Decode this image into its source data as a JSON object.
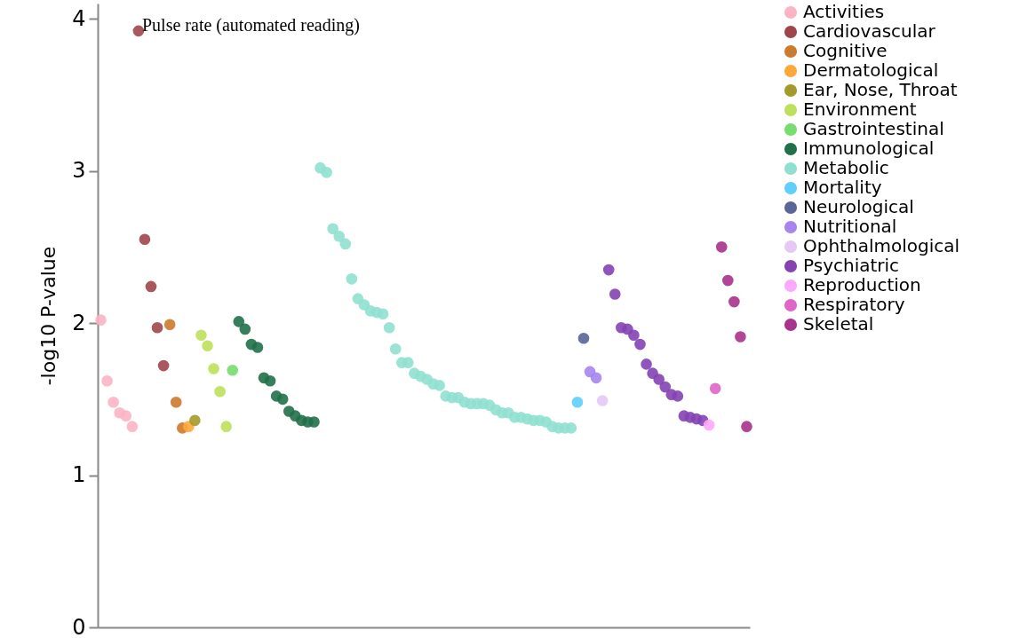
{
  "chart_data": {
    "type": "scatter",
    "ylabel": "-log10 P-value",
    "ylim": [
      0,
      4.1
    ],
    "yticks": [
      0,
      1,
      2,
      3,
      4
    ],
    "tick_labels": "y",
    "legend": "top right",
    "marker": "circle",
    "annotations": [
      "Pulse rate (automated reading)"
    ],
    "categories": [
      null,
      null,
      null,
      null,
      null,
      null,
      null,
      null,
      null,
      null,
      null,
      null,
      null,
      null,
      null,
      null,
      null,
      null,
      null,
      null,
      null,
      null,
      null,
      null,
      null,
      null,
      null,
      null,
      null,
      null,
      null,
      null,
      null,
      null,
      null,
      null,
      null,
      null,
      null,
      null,
      null,
      null,
      null,
      null,
      null,
      null,
      null,
      null,
      null,
      null,
      null,
      null,
      null,
      null,
      null,
      null,
      null,
      null,
      null,
      null,
      null,
      null,
      null,
      null,
      null,
      null,
      null,
      null,
      null,
      null,
      null,
      null,
      null,
      null,
      null,
      null,
      null,
      null,
      null,
      null,
      null,
      null,
      null,
      null,
      null,
      null,
      null,
      null,
      null,
      null,
      null,
      null,
      null,
      null,
      null,
      null,
      null,
      null,
      null,
      null,
      null,
      null,
      null,
      null
    ],
    "series": [
      {
        "name": "Activities",
        "color": "#fbb4c4",
        "values": [
          2.02,
          1.62,
          1.48,
          1.41,
          1.39,
          1.32,
          null,
          null,
          null,
          null,
          null,
          null,
          null,
          null,
          null,
          null,
          null,
          null,
          null,
          null,
          null,
          null,
          null,
          null,
          null,
          null,
          null,
          null,
          null,
          null,
          null,
          null,
          null,
          null,
          null,
          null,
          null,
          null,
          null,
          null,
          null,
          null,
          null,
          null,
          null,
          null,
          null,
          null,
          null,
          null,
          null,
          null,
          null,
          null,
          null,
          null,
          null,
          null,
          null,
          null,
          null,
          null,
          null,
          null,
          null,
          null,
          null,
          null,
          null,
          null,
          null,
          null,
          null,
          null,
          null,
          null,
          null,
          null,
          null,
          null,
          null,
          null,
          null,
          null,
          null,
          null,
          null,
          null,
          null,
          null,
          null,
          null,
          null,
          null,
          null,
          null,
          null,
          null,
          null,
          null,
          null,
          null,
          null,
          null
        ]
      },
      {
        "name": "Cardiovascular",
        "color": "#a0464b",
        "values": [
          null,
          null,
          null,
          null,
          null,
          null,
          3.92,
          2.55,
          2.24,
          1.97,
          1.72,
          null,
          null,
          null,
          null,
          null,
          null,
          null,
          null,
          null,
          null,
          null,
          null,
          null,
          null,
          null,
          null,
          null,
          null,
          null,
          null,
          null,
          null,
          null,
          null,
          null,
          null,
          null,
          null,
          null,
          null,
          null,
          null,
          null,
          null,
          null,
          null,
          null,
          null,
          null,
          null,
          null,
          null,
          null,
          null,
          null,
          null,
          null,
          null,
          null,
          null,
          null,
          null,
          null,
          null,
          null,
          null,
          null,
          null,
          null,
          null,
          null,
          null,
          null,
          null,
          null,
          null,
          null,
          null,
          null,
          null,
          null,
          null,
          null,
          null,
          null,
          null,
          null,
          null,
          null,
          null,
          null,
          null,
          null,
          null,
          null,
          null,
          null,
          null,
          null,
          null,
          null,
          null,
          null
        ]
      },
      {
        "name": "Cognitive",
        "color": "#cc7a2e",
        "values": [
          null,
          null,
          null,
          null,
          null,
          null,
          null,
          null,
          null,
          null,
          null,
          1.99,
          1.48,
          1.31,
          null,
          null,
          null,
          null,
          null,
          null,
          null,
          null,
          null,
          null,
          null,
          null,
          null,
          null,
          null,
          null,
          null,
          null,
          null,
          null,
          null,
          null,
          null,
          null,
          null,
          null,
          null,
          null,
          null,
          null,
          null,
          null,
          null,
          null,
          null,
          null,
          null,
          null,
          null,
          null,
          null,
          null,
          null,
          null,
          null,
          null,
          null,
          null,
          null,
          null,
          null,
          null,
          null,
          null,
          null,
          null,
          null,
          null,
          null,
          null,
          null,
          null,
          null,
          null,
          null,
          null,
          null,
          null,
          null,
          null,
          null,
          null,
          null,
          null,
          null,
          null,
          null,
          null,
          null,
          null,
          null,
          null,
          null,
          null,
          null,
          null,
          null,
          null,
          null,
          null
        ]
      },
      {
        "name": "Dermatological",
        "color": "#ffa83a",
        "values": [
          null,
          null,
          null,
          null,
          null,
          null,
          null,
          null,
          null,
          null,
          null,
          null,
          null,
          null,
          1.32,
          null,
          null,
          null,
          null,
          null,
          null,
          null,
          null,
          null,
          null,
          null,
          null,
          null,
          null,
          null,
          null,
          null,
          null,
          null,
          null,
          null,
          null,
          null,
          null,
          null,
          null,
          null,
          null,
          null,
          null,
          null,
          null,
          null,
          null,
          null,
          null,
          null,
          null,
          null,
          null,
          null,
          null,
          null,
          null,
          null,
          null,
          null,
          null,
          null,
          null,
          null,
          null,
          null,
          null,
          null,
          null,
          null,
          null,
          null,
          null,
          null,
          null,
          null,
          null,
          null,
          null,
          null,
          null,
          null,
          null,
          null,
          null,
          null,
          null,
          null,
          null,
          null,
          null,
          null,
          null,
          null,
          null,
          null,
          null,
          null,
          null,
          null,
          null,
          null
        ]
      },
      {
        "name": "Ear, Nose, Throat",
        "color": "#a39a29",
        "values": [
          null,
          null,
          null,
          null,
          null,
          null,
          null,
          null,
          null,
          null,
          null,
          null,
          null,
          null,
          null,
          1.36,
          null,
          null,
          null,
          null,
          null,
          null,
          null,
          null,
          null,
          null,
          null,
          null,
          null,
          null,
          null,
          null,
          null,
          null,
          null,
          null,
          null,
          null,
          null,
          null,
          null,
          null,
          null,
          null,
          null,
          null,
          null,
          null,
          null,
          null,
          null,
          null,
          null,
          null,
          null,
          null,
          null,
          null,
          null,
          null,
          null,
          null,
          null,
          null,
          null,
          null,
          null,
          null,
          null,
          null,
          null,
          null,
          null,
          null,
          null,
          null,
          null,
          null,
          null,
          null,
          null,
          null,
          null,
          null,
          null,
          null,
          null,
          null,
          null,
          null,
          null,
          null,
          null,
          null,
          null,
          null,
          null,
          null,
          null,
          null,
          null,
          null,
          null,
          null
        ]
      },
      {
        "name": "Environment",
        "color": "#bde05a",
        "values": [
          null,
          null,
          null,
          null,
          null,
          null,
          null,
          null,
          null,
          null,
          null,
          null,
          null,
          null,
          null,
          null,
          1.92,
          1.85,
          1.7,
          1.55,
          1.32,
          null,
          null,
          null,
          null,
          null,
          null,
          null,
          null,
          null,
          null,
          null,
          null,
          null,
          null,
          null,
          null,
          null,
          null,
          null,
          null,
          null,
          null,
          null,
          null,
          null,
          null,
          null,
          null,
          null,
          null,
          null,
          null,
          null,
          null,
          null,
          null,
          null,
          null,
          null,
          null,
          null,
          null,
          null,
          null,
          null,
          null,
          null,
          null,
          null,
          null,
          null,
          null,
          null,
          null,
          null,
          null,
          null,
          null,
          null,
          null,
          null,
          null,
          null,
          null,
          null,
          null,
          null,
          null,
          null,
          null,
          null,
          null,
          null,
          null,
          null,
          null,
          null,
          null,
          null,
          null,
          null,
          null,
          null
        ]
      },
      {
        "name": "Gastrointestinal",
        "color": "#77dd6e",
        "values": [
          null,
          null,
          null,
          null,
          null,
          null,
          null,
          null,
          null,
          null,
          null,
          null,
          null,
          null,
          null,
          null,
          null,
          null,
          null,
          null,
          null,
          1.69,
          null,
          null,
          null,
          null,
          null,
          null,
          null,
          null,
          null,
          null,
          null,
          null,
          null,
          null,
          null,
          null,
          null,
          null,
          null,
          null,
          null,
          null,
          null,
          null,
          null,
          null,
          null,
          null,
          null,
          null,
          null,
          null,
          null,
          null,
          null,
          null,
          null,
          null,
          null,
          null,
          null,
          null,
          null,
          null,
          null,
          null,
          null,
          null,
          null,
          null,
          null,
          null,
          null,
          null,
          null,
          null,
          null,
          null,
          null,
          null,
          null,
          null,
          null,
          null,
          null,
          null,
          null,
          null,
          null,
          null,
          null,
          null,
          null,
          null,
          null,
          null,
          null,
          null,
          null,
          null,
          null,
          null
        ]
      },
      {
        "name": "Immunological",
        "color": "#21704a",
        "values": [
          null,
          null,
          null,
          null,
          null,
          null,
          null,
          null,
          null,
          null,
          null,
          null,
          null,
          null,
          null,
          null,
          null,
          null,
          null,
          null,
          null,
          null,
          2.01,
          1.96,
          1.86,
          1.84,
          1.64,
          1.62,
          1.52,
          1.5,
          1.42,
          1.39,
          1.36,
          1.35,
          1.35,
          null,
          null,
          null,
          null,
          null,
          null,
          null,
          null,
          null,
          null,
          null,
          null,
          null,
          null,
          null,
          null,
          null,
          null,
          null,
          null,
          null,
          null,
          null,
          null,
          null,
          null,
          null,
          null,
          null,
          null,
          null,
          null,
          null,
          null,
          null,
          null,
          null,
          null,
          null,
          null,
          null,
          null,
          null,
          null,
          null,
          null,
          null,
          null,
          null,
          null,
          null,
          null,
          null,
          null,
          null,
          null,
          null,
          null,
          null,
          null,
          null,
          null,
          null,
          null,
          null,
          null,
          null,
          null,
          null
        ]
      },
      {
        "name": "Metabolic",
        "color": "#8fe0d0",
        "values": [
          null,
          null,
          null,
          null,
          null,
          null,
          null,
          null,
          null,
          null,
          null,
          null,
          null,
          null,
          null,
          null,
          null,
          null,
          null,
          null,
          null,
          null,
          null,
          null,
          null,
          null,
          null,
          null,
          null,
          null,
          null,
          null,
          null,
          null,
          null,
          3.02,
          2.99,
          2.62,
          2.57,
          2.52,
          2.29,
          2.16,
          2.12,
          2.08,
          2.07,
          2.06,
          1.97,
          1.83,
          1.74,
          1.74,
          1.67,
          1.65,
          1.63,
          1.6,
          1.59,
          1.52,
          1.51,
          1.51,
          1.48,
          1.47,
          1.47,
          1.47,
          1.46,
          1.43,
          1.41,
          1.41,
          1.38,
          1.38,
          1.37,
          1.36,
          1.36,
          1.35,
          1.32,
          1.31,
          1.31,
          1.31,
          null,
          null,
          null,
          null,
          null,
          null,
          null,
          null,
          null,
          null,
          null,
          null,
          null,
          null,
          null,
          null,
          null,
          null,
          null,
          null,
          null,
          null,
          null,
          null,
          null,
          null,
          null,
          null
        ]
      },
      {
        "name": "Mortality",
        "color": "#5fcffc",
        "values": [
          null,
          null,
          null,
          null,
          null,
          null,
          null,
          null,
          null,
          null,
          null,
          null,
          null,
          null,
          null,
          null,
          null,
          null,
          null,
          null,
          null,
          null,
          null,
          null,
          null,
          null,
          null,
          null,
          null,
          null,
          null,
          null,
          null,
          null,
          null,
          null,
          null,
          null,
          null,
          null,
          null,
          null,
          null,
          null,
          null,
          null,
          null,
          null,
          null,
          null,
          null,
          null,
          null,
          null,
          null,
          null,
          null,
          null,
          null,
          null,
          null,
          null,
          null,
          null,
          null,
          null,
          null,
          null,
          null,
          null,
          null,
          null,
          null,
          null,
          null,
          null,
          1.48,
          null,
          null,
          null,
          null,
          null,
          null,
          null,
          null,
          null,
          null,
          null,
          null,
          null,
          null,
          null,
          null,
          null,
          null,
          null,
          null,
          null,
          null,
          null,
          null,
          null,
          null,
          null
        ]
      },
      {
        "name": "Neurological",
        "color": "#5a6598",
        "values": [
          null,
          null,
          null,
          null,
          null,
          null,
          null,
          null,
          null,
          null,
          null,
          null,
          null,
          null,
          null,
          null,
          null,
          null,
          null,
          null,
          null,
          null,
          null,
          null,
          null,
          null,
          null,
          null,
          null,
          null,
          null,
          null,
          null,
          null,
          null,
          null,
          null,
          null,
          null,
          null,
          null,
          null,
          null,
          null,
          null,
          null,
          null,
          null,
          null,
          null,
          null,
          null,
          null,
          null,
          null,
          null,
          null,
          null,
          null,
          null,
          null,
          null,
          null,
          null,
          null,
          null,
          null,
          null,
          null,
          null,
          null,
          null,
          null,
          null,
          null,
          null,
          null,
          1.9,
          null,
          null,
          null,
          null,
          null,
          null,
          null,
          null,
          null,
          null,
          null,
          null,
          null,
          null,
          null,
          null,
          null,
          null,
          null,
          null,
          null,
          null,
          null,
          null,
          null,
          null
        ]
      },
      {
        "name": "Nutritional",
        "color": "#a685ee",
        "values": [
          null,
          null,
          null,
          null,
          null,
          null,
          null,
          null,
          null,
          null,
          null,
          null,
          null,
          null,
          null,
          null,
          null,
          null,
          null,
          null,
          null,
          null,
          null,
          null,
          null,
          null,
          null,
          null,
          null,
          null,
          null,
          null,
          null,
          null,
          null,
          null,
          null,
          null,
          null,
          null,
          null,
          null,
          null,
          null,
          null,
          null,
          null,
          null,
          null,
          null,
          null,
          null,
          null,
          null,
          null,
          null,
          null,
          null,
          null,
          null,
          null,
          null,
          null,
          null,
          null,
          null,
          null,
          null,
          null,
          null,
          null,
          null,
          null,
          null,
          null,
          null,
          null,
          null,
          1.68,
          1.64,
          null,
          null,
          null,
          null,
          null,
          null,
          null,
          null,
          null,
          null,
          null,
          null,
          null,
          null,
          null,
          null,
          null,
          null,
          null,
          null,
          null,
          null,
          null,
          null
        ]
      },
      {
        "name": "Ophthalmological",
        "color": "#e6c8f6",
        "values": [
          null,
          null,
          null,
          null,
          null,
          null,
          null,
          null,
          null,
          null,
          null,
          null,
          null,
          null,
          null,
          null,
          null,
          null,
          null,
          null,
          null,
          null,
          null,
          null,
          null,
          null,
          null,
          null,
          null,
          null,
          null,
          null,
          null,
          null,
          null,
          null,
          null,
          null,
          null,
          null,
          null,
          null,
          null,
          null,
          null,
          null,
          null,
          null,
          null,
          null,
          null,
          null,
          null,
          null,
          null,
          null,
          null,
          null,
          null,
          null,
          null,
          null,
          null,
          null,
          null,
          null,
          null,
          null,
          null,
          null,
          null,
          null,
          null,
          null,
          null,
          null,
          null,
          null,
          null,
          null,
          1.49,
          null,
          null,
          null,
          null,
          null,
          null,
          null,
          null,
          null,
          null,
          null,
          null,
          null,
          null,
          null,
          null,
          null,
          null,
          null,
          null,
          null,
          null,
          null
        ]
      },
      {
        "name": "Psychiatric",
        "color": "#8442b3",
        "values": [
          null,
          null,
          null,
          null,
          null,
          null,
          null,
          null,
          null,
          null,
          null,
          null,
          null,
          null,
          null,
          null,
          null,
          null,
          null,
          null,
          null,
          null,
          null,
          null,
          null,
          null,
          null,
          null,
          null,
          null,
          null,
          null,
          null,
          null,
          null,
          null,
          null,
          null,
          null,
          null,
          null,
          null,
          null,
          null,
          null,
          null,
          null,
          null,
          null,
          null,
          null,
          null,
          null,
          null,
          null,
          null,
          null,
          null,
          null,
          null,
          null,
          null,
          null,
          null,
          null,
          null,
          null,
          null,
          null,
          null,
          null,
          null,
          null,
          null,
          null,
          null,
          null,
          null,
          null,
          null,
          null,
          2.35,
          2.19,
          1.97,
          1.96,
          1.92,
          1.86,
          1.73,
          1.67,
          1.63,
          1.58,
          1.53,
          1.52,
          1.39,
          1.38,
          1.37,
          1.36,
          null,
          null,
          null,
          null,
          null,
          null,
          null
        ]
      },
      {
        "name": "Reproduction",
        "color": "#fca8fc",
        "values": [
          null,
          null,
          null,
          null,
          null,
          null,
          null,
          null,
          null,
          null,
          null,
          null,
          null,
          null,
          null,
          null,
          null,
          null,
          null,
          null,
          null,
          null,
          null,
          null,
          null,
          null,
          null,
          null,
          null,
          null,
          null,
          null,
          null,
          null,
          null,
          null,
          null,
          null,
          null,
          null,
          null,
          null,
          null,
          null,
          null,
          null,
          null,
          null,
          null,
          null,
          null,
          null,
          null,
          null,
          null,
          null,
          null,
          null,
          null,
          null,
          null,
          null,
          null,
          null,
          null,
          null,
          null,
          null,
          null,
          null,
          null,
          null,
          null,
          null,
          null,
          null,
          null,
          null,
          null,
          null,
          null,
          null,
          null,
          null,
          null,
          null,
          null,
          null,
          null,
          null,
          null,
          null,
          null,
          null,
          null,
          null,
          null,
          1.33,
          null,
          null,
          null,
          null,
          null,
          null
        ]
      },
      {
        "name": "Respiratory",
        "color": "#e065c9",
        "values": [
          null,
          null,
          null,
          null,
          null,
          null,
          null,
          null,
          null,
          null,
          null,
          null,
          null,
          null,
          null,
          null,
          null,
          null,
          null,
          null,
          null,
          null,
          null,
          null,
          null,
          null,
          null,
          null,
          null,
          null,
          null,
          null,
          null,
          null,
          null,
          null,
          null,
          null,
          null,
          null,
          null,
          null,
          null,
          null,
          null,
          null,
          null,
          null,
          null,
          null,
          null,
          null,
          null,
          null,
          null,
          null,
          null,
          null,
          null,
          null,
          null,
          null,
          null,
          null,
          null,
          null,
          null,
          null,
          null,
          null,
          null,
          null,
          null,
          null,
          null,
          null,
          null,
          null,
          null,
          null,
          null,
          null,
          null,
          null,
          null,
          null,
          null,
          null,
          null,
          null,
          null,
          null,
          null,
          null,
          null,
          null,
          null,
          null,
          1.57,
          null,
          null,
          null,
          null,
          null
        ]
      },
      {
        "name": "Skeletal",
        "color": "#a8328c",
        "values": [
          null,
          null,
          null,
          null,
          null,
          null,
          null,
          null,
          null,
          null,
          null,
          null,
          null,
          null,
          null,
          null,
          null,
          null,
          null,
          null,
          null,
          null,
          null,
          null,
          null,
          null,
          null,
          null,
          null,
          null,
          null,
          null,
          null,
          null,
          null,
          null,
          null,
          null,
          null,
          null,
          null,
          null,
          null,
          null,
          null,
          null,
          null,
          null,
          null,
          null,
          null,
          null,
          null,
          null,
          null,
          null,
          null,
          null,
          null,
          null,
          null,
          null,
          null,
          null,
          null,
          null,
          null,
          null,
          null,
          null,
          null,
          null,
          null,
          null,
          null,
          null,
          null,
          null,
          null,
          null,
          null,
          null,
          null,
          null,
          null,
          null,
          null,
          null,
          null,
          null,
          null,
          null,
          null,
          null,
          null,
          null,
          null,
          null,
          null,
          2.5,
          2.28,
          2.14,
          1.91,
          1.32
        ]
      }
    ]
  }
}
